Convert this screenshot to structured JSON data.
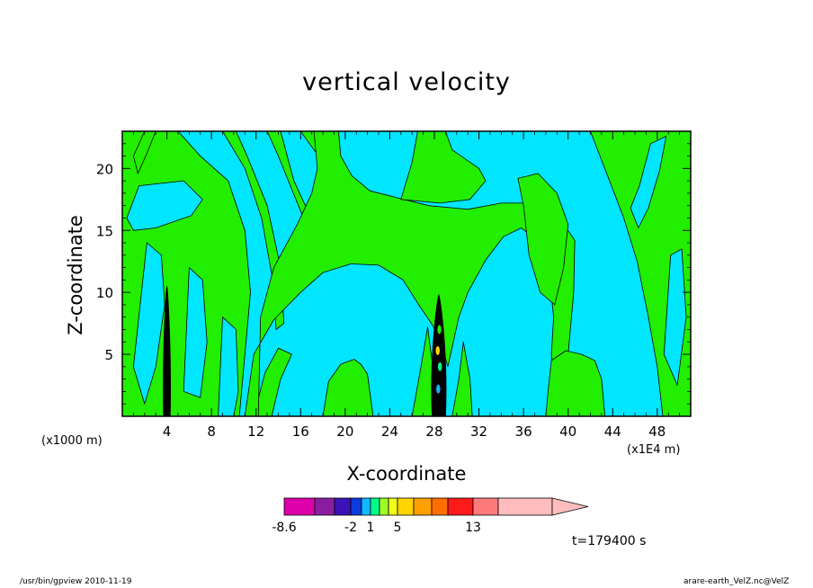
{
  "chart_data": {
    "type": "heatmap",
    "title": "vertical velocity",
    "xlabel": "X-coordinate",
    "ylabel": "Z-coordinate",
    "x_unit_label": "(x1000 m)",
    "x_multiplier_label": "(x1E4 m)",
    "xlim": [
      0,
      51
    ],
    "ylim": [
      0,
      23
    ],
    "x_ticks": [
      4,
      8,
      12,
      16,
      20,
      24,
      28,
      32,
      36,
      40,
      44,
      48
    ],
    "y_ticks": [
      5,
      10,
      15,
      20
    ],
    "colorbar": {
      "colors": [
        "#dd00aa",
        "#8a1ea0",
        "#3a14b8",
        "#0c3ce0",
        "#10b8ff",
        "#00ff88",
        "#9cff2a",
        "#f0ff1a",
        "#ffd400",
        "#ffa000",
        "#ff6e00",
        "#ff1a1a",
        "#ff7a7a",
        "#ffbcbc",
        "#ffbcbc"
      ],
      "tick_labels": [
        "-8.6",
        "-2",
        "1",
        "5",
        "13"
      ],
      "tick_after_box": [
        0,
        3,
        5,
        8,
        12
      ]
    },
    "field_colors": {
      "negative": "#00e6ff",
      "weak_positive": "#22ee00",
      "strong_core": "#000000",
      "contour": "#000000"
    },
    "time_label": "t=179400 s"
  },
  "footer": {
    "left": "/usr/bin/gpview   2010-11-19",
    "right": "arare-earth_VelZ.nc@VelZ"
  }
}
